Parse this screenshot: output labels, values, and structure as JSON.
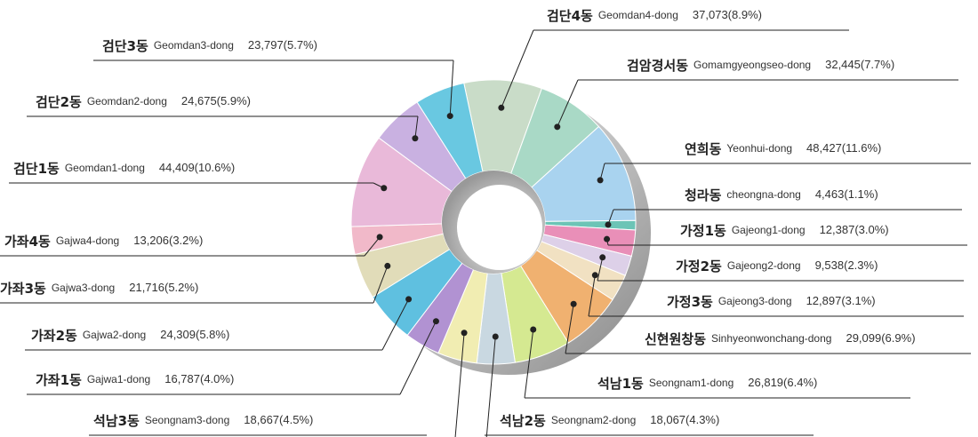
{
  "chart_data": {
    "type": "pie",
    "categories": [
      "검단4동",
      "검암경서동",
      "연희동",
      "청라동",
      "가정1동",
      "가정2동",
      "가정3동",
      "신현원창동",
      "석남1동",
      "석남2동",
      "석남3동",
      "가좌1동",
      "가좌2동",
      "가좌3동",
      "가좌4동",
      "검단1동",
      "검단2동",
      "검단3동"
    ],
    "english_names": [
      "Geomdan4-dong",
      "Gomamgyeongseo-dong",
      "Yeonhui-dong",
      "cheongna-dong",
      "Gajeong1-dong",
      "Gajeong2-dong",
      "Gajeong3-dong",
      "Sinhyeonwonchang-dong",
      "Seongnam1-dong",
      "Seongnam2-dong",
      "Seongnam3-dong",
      "Gajwa1-dong",
      "Gajwa2-dong",
      "Gajwa3-dong",
      "Gajwa4-dong",
      "Geomdan1-dong",
      "Geomdan2-dong",
      "Geomdan3-dong"
    ],
    "values": [
      37073,
      32445,
      48427,
      4463,
      12387,
      9538,
      12897,
      29099,
      26819,
      18067,
      18667,
      16787,
      24309,
      21716,
      13206,
      44409,
      24675,
      23797
    ],
    "value_labels": [
      "37,073(8.9%)",
      "32,445(7.7%)",
      "48,427(11.6%)",
      "4,463(1.1%)",
      "12,387(3.0%)",
      "9,538(2.3%)",
      "12,897(3.1%)",
      "29,099(6.9%)",
      "26,819(6.4%)",
      "18,067(4.3%)",
      "18,667(4.5%)",
      "16,787(4.0%)",
      "24,309(5.8%)",
      "21,716(5.2%)",
      "13,206(3.2%)",
      "44,409(10.6%)",
      "24,675(5.9%)",
      "23,797(5.7%)"
    ],
    "colors": [
      "#c9dcc8",
      "#a9d9c6",
      "#a9d3ef",
      "#6cc4b6",
      "#e98fb8",
      "#ddd0e8",
      "#f1e1c2",
      "#f0b170",
      "#d5e991",
      "#c9d8e1",
      "#f1edb2",
      "#b192d2",
      "#5fc0e0",
      "#e1dcb9",
      "#f1b9c9",
      "#e9b9d9",
      "#c9b1e1",
      "#69c8e1"
    ]
  }
}
